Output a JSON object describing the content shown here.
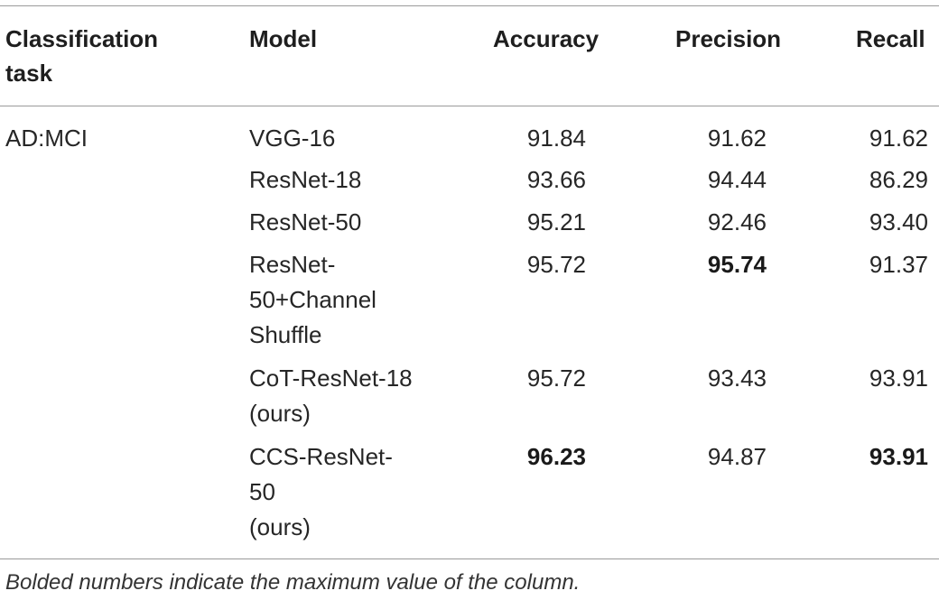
{
  "table": {
    "headers": {
      "task": "Classification task",
      "model": "Model",
      "accuracy": "Accuracy",
      "precision": "Precision",
      "recall": "Recall"
    },
    "task": "AD:MCI",
    "rows": [
      {
        "model": "VGG-16",
        "accuracy": "91.84",
        "precision": "91.62",
        "recall": "91.62"
      },
      {
        "model": "ResNet-18",
        "accuracy": "93.66",
        "precision": "94.44",
        "recall": "86.29"
      },
      {
        "model": "ResNet-50",
        "accuracy": "95.21",
        "precision": "92.46",
        "recall": "93.40"
      },
      {
        "model": "ResNet-50+Channel Shuffle",
        "accuracy": "95.72",
        "precision": "95.74",
        "recall": "91.37"
      },
      {
        "model": "CoT-ResNet-18 (ours)",
        "accuracy": "95.72",
        "precision": "93.43",
        "recall": "93.91"
      },
      {
        "model": "CCS-ResNet-50 (ours)",
        "accuracy": "96.23",
        "precision": "94.87",
        "recall": "93.91"
      }
    ],
    "model_lines": {
      "r3a": "ResNet-",
      "r3b": "50+Channel",
      "r3c": "Shuffle",
      "r4a": "CoT-ResNet-18",
      "r4b": "(ours)",
      "r5a": "CCS-ResNet-",
      "r5b": "50",
      "r5c": "(ours)"
    }
  },
  "footnote": "Bolded numbers indicate the maximum value of the column."
}
